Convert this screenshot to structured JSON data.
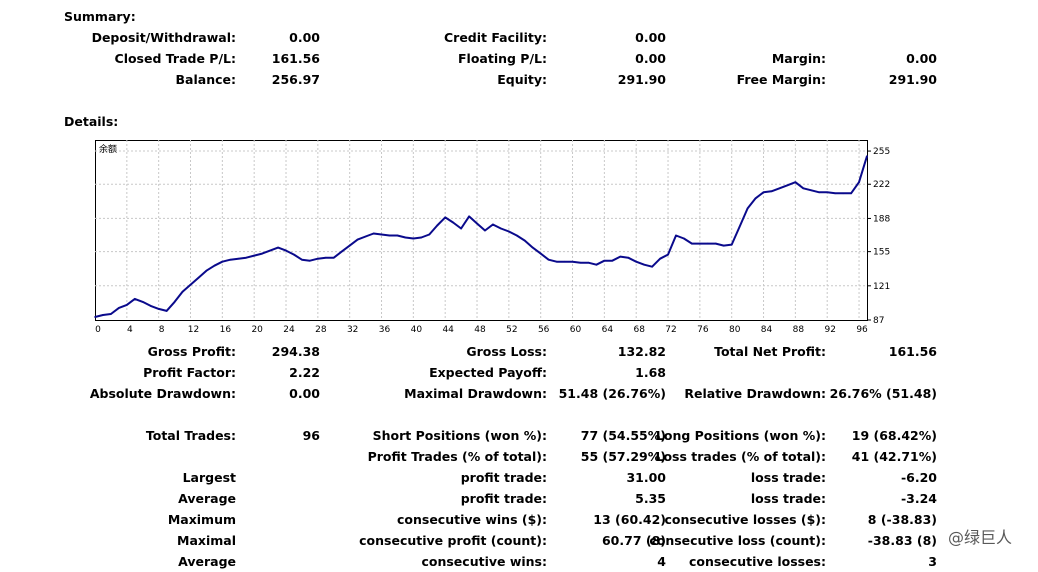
{
  "summary": {
    "heading": "Summary:",
    "deposit_label": "Deposit/Withdrawal:",
    "deposit_value": "0.00",
    "credit_label": "Credit Facility:",
    "credit_value": "0.00",
    "closed_label": "Closed Trade P/L:",
    "closed_value": "161.56",
    "floating_label": "Floating P/L:",
    "floating_value": "0.00",
    "margin_label": "Margin:",
    "margin_value": "0.00",
    "balance_label": "Balance:",
    "balance_value": "256.97",
    "equity_label": "Equity:",
    "equity_value": "291.90",
    "free_margin_label": "Free Margin:",
    "free_margin_value": "291.90"
  },
  "details": {
    "heading": "Details:"
  },
  "chart_data": {
    "type": "line",
    "series_label": "余额",
    "line_color": "#0a0a8c",
    "grid": true,
    "xlim": [
      0,
      97
    ],
    "ylim": [
      87,
      266
    ],
    "x_ticks": [
      "0",
      "4",
      "8",
      "12",
      "16",
      "20",
      "24",
      "28",
      "32",
      "36",
      "40",
      "44",
      "48",
      "52",
      "56",
      "60",
      "64",
      "68",
      "72",
      "76",
      "80",
      "84",
      "88",
      "92",
      "96"
    ],
    "y_ticks": [
      "255",
      "222",
      "188",
      "155",
      "121",
      "87"
    ],
    "x": [
      0,
      1,
      2,
      3,
      4,
      5,
      6,
      7,
      8,
      9,
      10,
      11,
      12,
      13,
      14,
      15,
      16,
      17,
      18,
      19,
      20,
      21,
      22,
      23,
      24,
      25,
      26,
      27,
      28,
      29,
      30,
      31,
      32,
      33,
      34,
      35,
      36,
      37,
      38,
      39,
      40,
      41,
      42,
      43,
      44,
      45,
      46,
      47,
      48,
      49,
      50,
      51,
      52,
      53,
      54,
      55,
      56,
      57,
      58,
      59,
      60,
      61,
      62,
      63,
      64,
      65,
      66,
      67,
      68,
      69,
      70,
      71,
      72,
      73,
      74,
      75,
      76,
      77,
      78,
      79,
      80,
      81,
      82,
      83,
      84,
      85,
      86,
      87,
      88,
      89,
      90,
      91,
      92,
      93,
      94,
      95,
      96,
      97
    ],
    "y": [
      90,
      92,
      93,
      99,
      102,
      108,
      105,
      101,
      98,
      96,
      105,
      115,
      122,
      129,
      136,
      141,
      145,
      147,
      148,
      149,
      151,
      153,
      156,
      159,
      156,
      152,
      147,
      146,
      148,
      149,
      149,
      155,
      161,
      167,
      170,
      173,
      172,
      171,
      171,
      169,
      168,
      169,
      172,
      181,
      189,
      184,
      178,
      190,
      183,
      176,
      182,
      178,
      175,
      171,
      166,
      159,
      153,
      147,
      145,
      145,
      145,
      144,
      144,
      142,
      146,
      146,
      150,
      149,
      145,
      142,
      140,
      148,
      152,
      171,
      168,
      163,
      163,
      163,
      163,
      161,
      162,
      180,
      198,
      208,
      214,
      215,
      218,
      221,
      224,
      218,
      216,
      214,
      214,
      213,
      213,
      213,
      224,
      250
    ]
  },
  "stats": {
    "gross_profit_label": "Gross Profit:",
    "gross_profit_value": "294.38",
    "gross_loss_label": "Gross Loss:",
    "gross_loss_value": "132.82",
    "total_net_profit_label": "Total Net Profit:",
    "total_net_profit_value": "161.56",
    "profit_factor_label": "Profit Factor:",
    "profit_factor_value": "2.22",
    "expected_payoff_label": "Expected Payoff:",
    "expected_payoff_value": "1.68",
    "absolute_drawdown_label": "Absolute Drawdown:",
    "absolute_drawdown_value": "0.00",
    "maximal_drawdown_label": "Maximal Drawdown:",
    "maximal_drawdown_value": "51.48 (26.76%)",
    "relative_drawdown_label": "Relative Drawdown:",
    "relative_drawdown_value": "26.76% (51.48)",
    "total_trades_label": "Total Trades:",
    "total_trades_value": "96",
    "short_positions_label": "Short Positions (won %):",
    "short_positions_value": "77 (54.55%)",
    "long_positions_label": "Long Positions (won %):",
    "long_positions_value": "19 (68.42%)",
    "profit_trades_label": "Profit Trades (% of total):",
    "profit_trades_value": "55 (57.29%)",
    "loss_trades_label": "Loss trades (% of total):",
    "loss_trades_value": "41 (42.71%)",
    "largest_label": "Largest",
    "largest_profit_label": "profit trade:",
    "largest_profit_value": "31.00",
    "largest_loss_label": "loss trade:",
    "largest_loss_value": "-6.20",
    "average_label": "Average",
    "average_profit_label": "profit trade:",
    "average_profit_value": "5.35",
    "average_loss_label": "loss trade:",
    "average_loss_value": "-3.24",
    "maximum_label": "Maximum",
    "max_wins_label": "consecutive wins ($):",
    "max_wins_value": "13 (60.42)",
    "max_losses_label": "consecutive losses ($):",
    "max_losses_value": "8 (-38.83)",
    "maximal_label": "Maximal",
    "maximal_profit_label": "consecutive profit (count):",
    "maximal_profit_value": "60.77 (8)",
    "maximal_loss_label": "consecutive loss (count):",
    "maximal_loss_value": "-38.83 (8)",
    "average2_label": "Average",
    "avg_wins_label": "consecutive wins:",
    "avg_wins_value": "4",
    "avg_losses_label": "consecutive losses:",
    "avg_losses_value": "3"
  },
  "watermark": "@绿巨人"
}
